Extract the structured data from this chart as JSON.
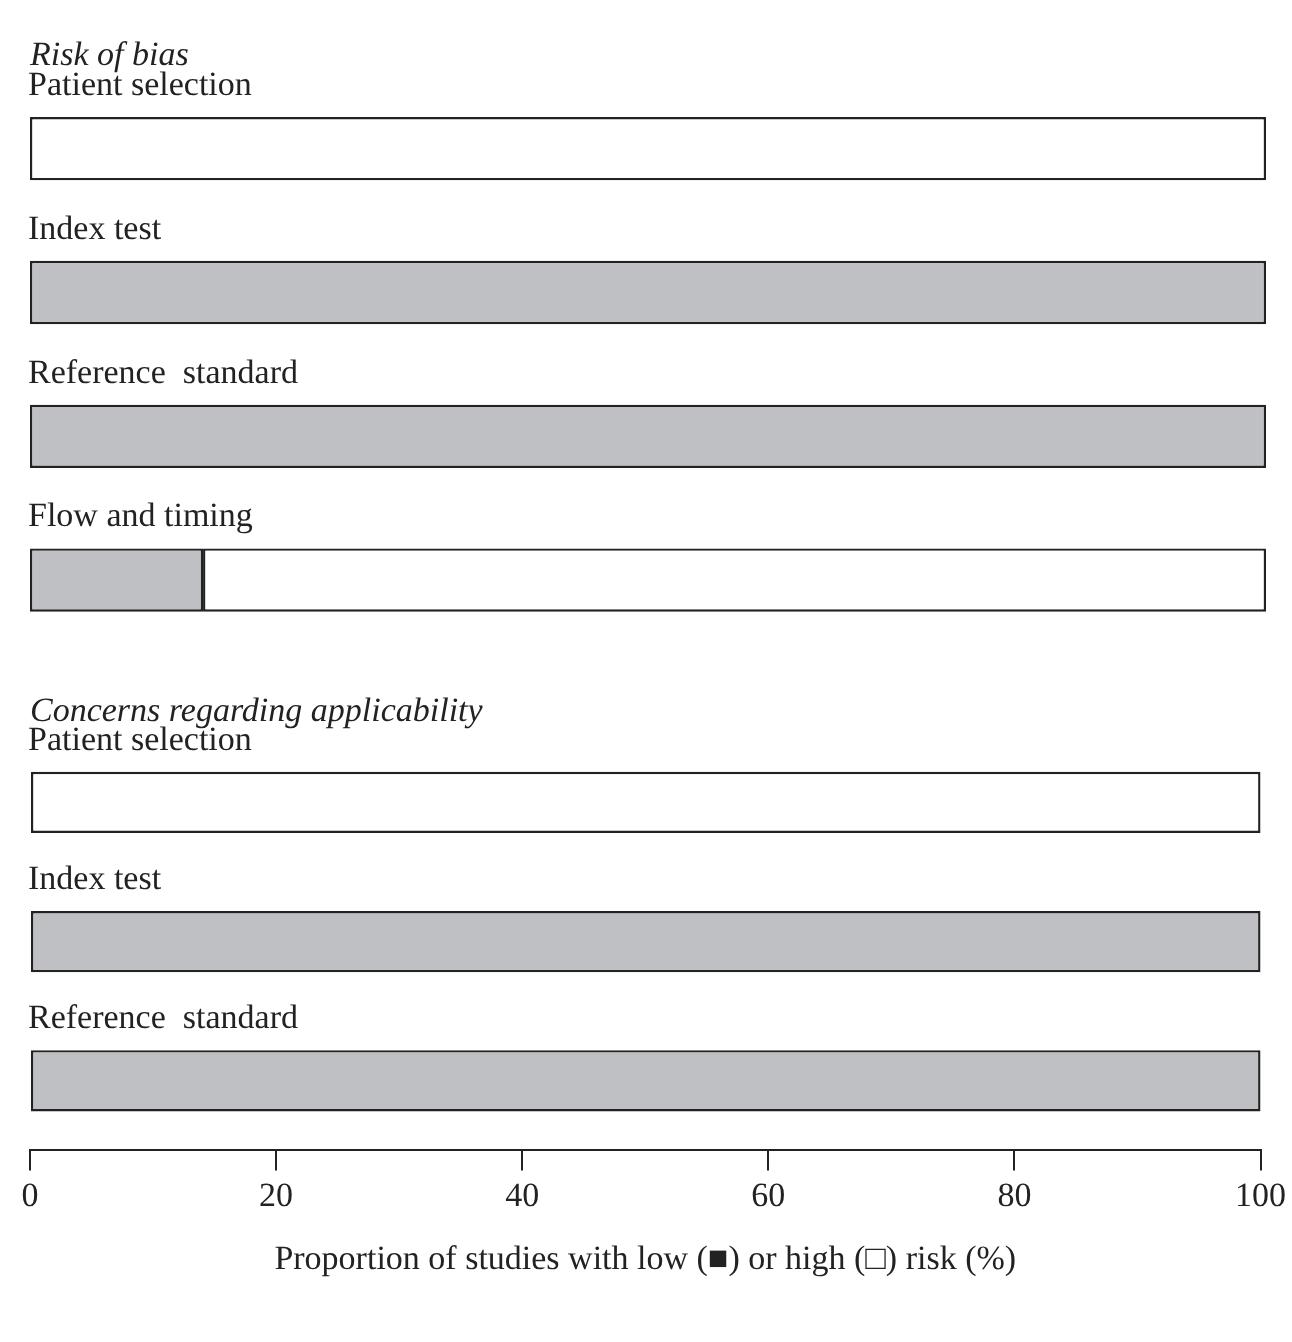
{
  "chart_data": [
    {
      "type": "bar",
      "title": "Risk of bias",
      "orientation": "horizontal",
      "stacked": true,
      "tick_labels": false,
      "categories": [
        "Patient selection",
        "Index test",
        "Reference  standard",
        "Flow and timing"
      ],
      "series": [
        {
          "color": "#bfc0c4",
          "values": [
            0,
            100,
            100,
            14
          ]
        },
        {
          "color": "#ffffff",
          "values": [
            100,
            0,
            0,
            86
          ]
        }
      ],
      "xlim": [
        0,
        100
      ],
      "xticks": [
        0,
        20,
        40,
        60,
        80,
        100
      ],
      "grid": false,
      "legend": false
    },
    {
      "type": "bar",
      "title": "Concerns regarding applicability",
      "orientation": "horizontal",
      "stacked": true,
      "xlabel": "Proportion of studies with low (■) or high (□) risk (%)",
      "categories": [
        "Patient selection",
        "Index test",
        "Reference  standard"
      ],
      "series": [
        {
          "color": "#bfc0c4",
          "values": [
            0,
            100,
            100
          ]
        },
        {
          "color": "#ffffff",
          "values": [
            100,
            0,
            0
          ]
        }
      ],
      "xlim": [
        0,
        100
      ],
      "xticks": [
        0,
        20,
        40,
        60,
        80,
        100
      ],
      "grid": false,
      "legend": false
    }
  ]
}
